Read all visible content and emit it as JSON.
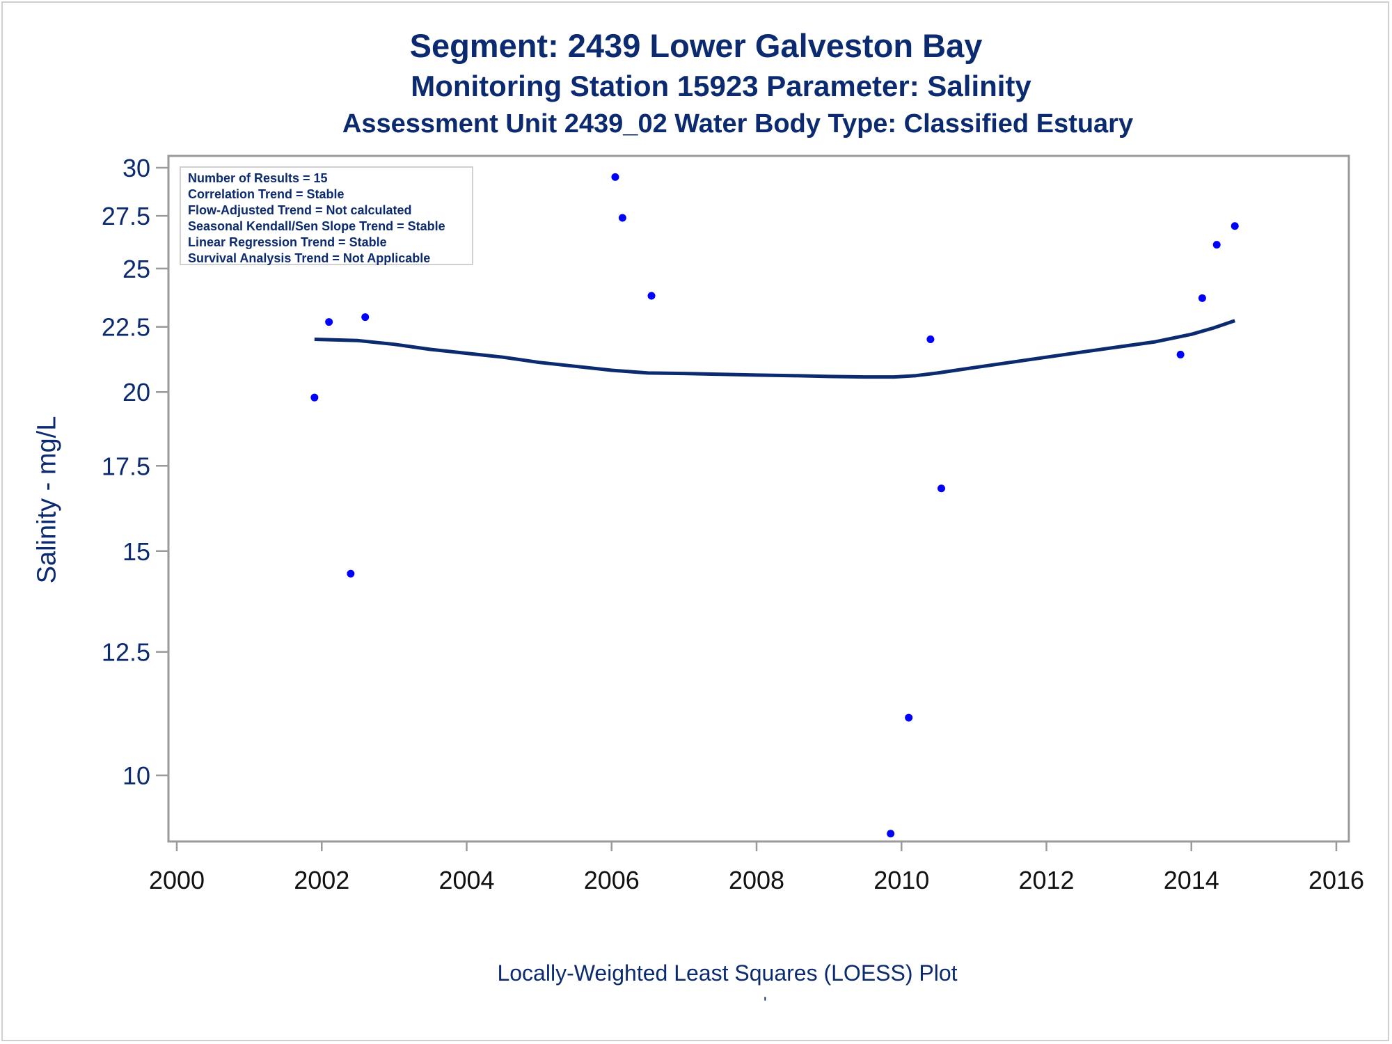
{
  "titles": {
    "line1": "Segment: 2439  Lower Galveston Bay",
    "line2": "Monitoring Station 15923 Parameter: Salinity",
    "line3": "Assessment Unit 2439_02   Water Body Type: Classified Estuary"
  },
  "stats": [
    "Number of Results = 15",
    "Correlation Trend = Stable",
    "Flow-Adjusted Trend = Not calculated",
    "Seasonal Kendall/Sen Slope Trend = Stable",
    "Linear Regression Trend = Stable",
    "Survival Analysis Trend = Not Applicable"
  ],
  "footnote": "Locally-Weighted Least Squares (LOESS) Plot",
  "footnote_mark": "'",
  "colors": {
    "text": "#0b2a6f",
    "points": "#0000ff",
    "line": "#0b2a6f",
    "axis": "#9a9a9a"
  },
  "chart_data": {
    "type": "scatter",
    "xlabel": "",
    "ylabel": "Salinity - mg/L",
    "xlim": [
      2000,
      2016
    ],
    "ylim": [
      8.9,
      30.3
    ],
    "y_scale": "log",
    "x_ticks": [
      2000,
      2002,
      2004,
      2006,
      2008,
      2010,
      2012,
      2014,
      2016
    ],
    "y_ticks": [
      10,
      12.5,
      15,
      17.5,
      20,
      22.5,
      25,
      27.5,
      30
    ],
    "y_tick_labels": [
      "10",
      "12.5",
      "15",
      "17.5",
      "20",
      "22.5",
      "25",
      "27.5",
      "30"
    ],
    "legend": "top-left",
    "grid": false,
    "points": [
      {
        "x": 2001.9,
        "y": 19.8
      },
      {
        "x": 2002.1,
        "y": 22.7
      },
      {
        "x": 2002.4,
        "y": 14.4
      },
      {
        "x": 2002.6,
        "y": 22.9
      },
      {
        "x": 2006.05,
        "y": 29.5
      },
      {
        "x": 2006.15,
        "y": 27.4
      },
      {
        "x": 2006.55,
        "y": 23.8
      },
      {
        "x": 2009.85,
        "y": 9.0
      },
      {
        "x": 2010.1,
        "y": 11.1
      },
      {
        "x": 2010.4,
        "y": 22.0
      },
      {
        "x": 2010.55,
        "y": 16.8
      },
      {
        "x": 2013.85,
        "y": 21.4
      },
      {
        "x": 2014.15,
        "y": 23.7
      },
      {
        "x": 2014.35,
        "y": 26.1
      },
      {
        "x": 2014.6,
        "y": 27.0
      }
    ],
    "loess": [
      {
        "x": 2001.9,
        "y": 22.0
      },
      {
        "x": 2002.5,
        "y": 21.95
      },
      {
        "x": 2003.0,
        "y": 21.8
      },
      {
        "x": 2003.5,
        "y": 21.6
      },
      {
        "x": 2004.0,
        "y": 21.45
      },
      {
        "x": 2004.5,
        "y": 21.3
      },
      {
        "x": 2005.0,
        "y": 21.1
      },
      {
        "x": 2005.5,
        "y": 20.95
      },
      {
        "x": 2006.0,
        "y": 20.8
      },
      {
        "x": 2006.5,
        "y": 20.7
      },
      {
        "x": 2007.0,
        "y": 20.68
      },
      {
        "x": 2007.5,
        "y": 20.65
      },
      {
        "x": 2008.0,
        "y": 20.62
      },
      {
        "x": 2008.5,
        "y": 20.6
      },
      {
        "x": 2009.0,
        "y": 20.57
      },
      {
        "x": 2009.5,
        "y": 20.55
      },
      {
        "x": 2009.9,
        "y": 20.55
      },
      {
        "x": 2010.2,
        "y": 20.6
      },
      {
        "x": 2010.5,
        "y": 20.7
      },
      {
        "x": 2011.0,
        "y": 20.9
      },
      {
        "x": 2011.5,
        "y": 21.1
      },
      {
        "x": 2012.0,
        "y": 21.3
      },
      {
        "x": 2012.5,
        "y": 21.5
      },
      {
        "x": 2013.0,
        "y": 21.7
      },
      {
        "x": 2013.5,
        "y": 21.9
      },
      {
        "x": 2014.0,
        "y": 22.2
      },
      {
        "x": 2014.3,
        "y": 22.45
      },
      {
        "x": 2014.6,
        "y": 22.75
      }
    ]
  }
}
